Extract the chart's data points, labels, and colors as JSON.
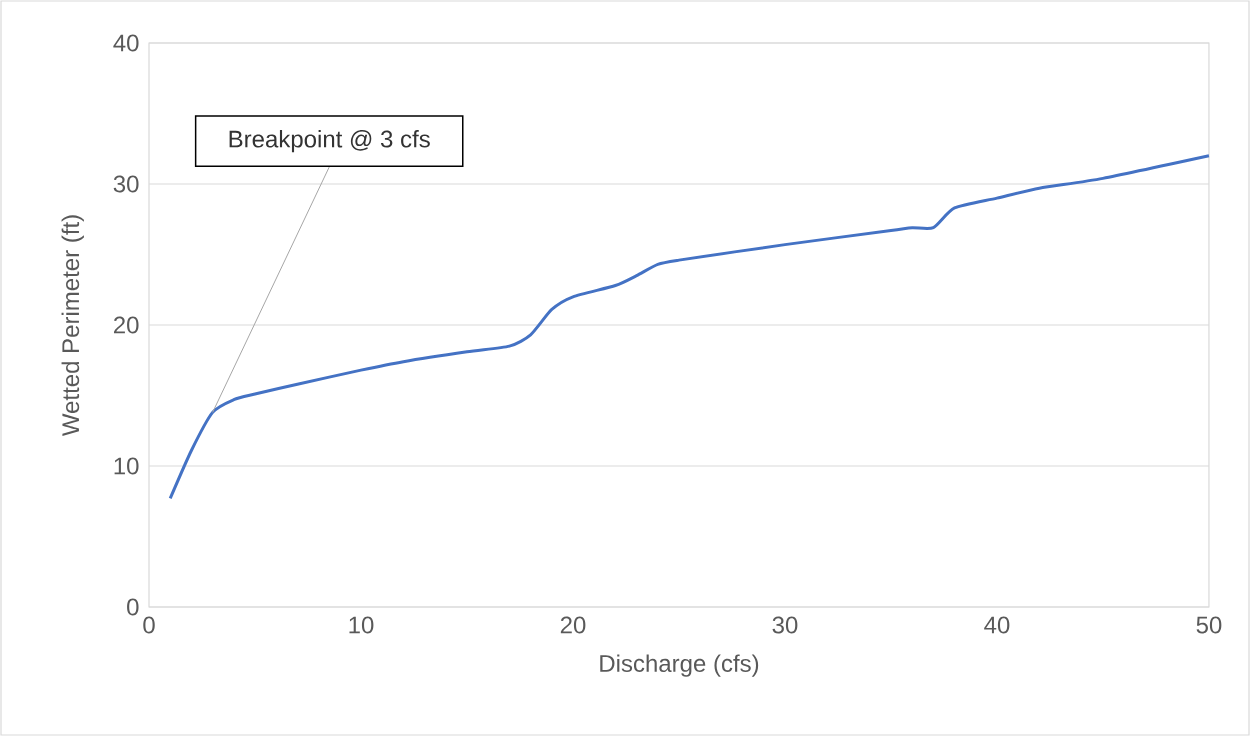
{
  "chart_data": {
    "type": "line",
    "xlabel": "Discharge (cfs)",
    "ylabel": "Wetted Perimeter (ft)",
    "x": [
      1,
      2,
      3,
      4,
      5,
      7,
      10,
      12,
      15,
      17,
      18,
      19,
      20,
      22,
      23,
      24,
      25,
      30,
      35,
      36,
      37,
      38,
      40,
      42,
      45,
      50
    ],
    "series": [
      {
        "color": "#4472c4",
        "values": [
          7.7,
          11.1,
          13.8,
          14.7,
          15.1,
          15.8,
          16.8,
          17.4,
          18.1,
          18.5,
          19.3,
          21.1,
          22.0,
          22.8,
          23.5,
          24.3,
          24.6,
          25.7,
          26.7,
          26.9,
          26.9,
          28.3,
          29.0,
          29.7,
          30.4,
          32.0
        ]
      }
    ],
    "annotations": [
      {
        "text": "Breakpoint @ 3 cfs",
        "x": 3,
        "y": 13.8
      }
    ],
    "xlim": [
      0,
      50
    ],
    "xticks": [
      0,
      10,
      20,
      30,
      40,
      50
    ],
    "ylim": [
      0,
      40
    ],
    "yticks": [
      0,
      10,
      20,
      30,
      40
    ],
    "grid": "y",
    "marker": "none",
    "line_style": "solid"
  }
}
